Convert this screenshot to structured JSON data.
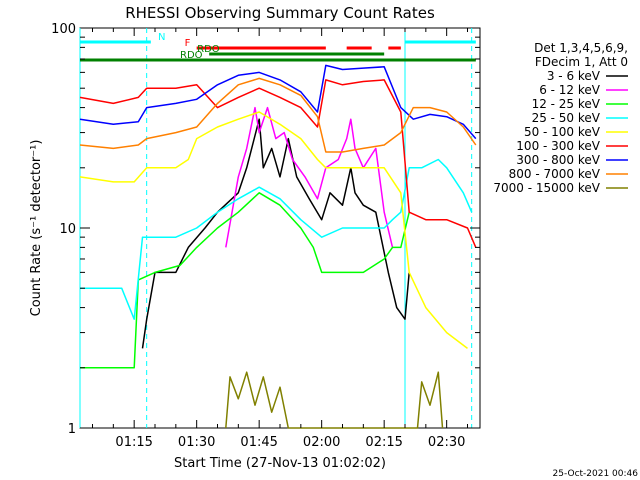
{
  "chart_data": {
    "type": "line",
    "title": "RHESSI Observing Summary Count Rates",
    "xlabel": "Start Time (27-Nov-13 01:02:02)",
    "ylabel": "Count Rate (s⁻¹ detector⁻¹)",
    "ylim": [
      1,
      100
    ],
    "yscale": "log",
    "xlim_minutes": [
      62,
      158
    ],
    "x_ticks": [
      {
        "label": "01:15",
        "minute": 75
      },
      {
        "label": "01:30",
        "minute": 90
      },
      {
        "label": "01:45",
        "minute": 105
      },
      {
        "label": "02:00",
        "minute": 120
      },
      {
        "label": "02:15",
        "minute": 135
      },
      {
        "label": "02:30",
        "minute": 150
      }
    ],
    "y_ticks": [
      {
        "label": "1",
        "value": 1
      },
      {
        "label": "10",
        "value": 10
      },
      {
        "label": "100",
        "value": 100
      }
    ],
    "legend": {
      "placement": "right",
      "title_lines": [
        "Det 1,3,4,5,6,9,",
        "FDecim 1, Att 0"
      ]
    },
    "timestamp": "25-Oct-2021 00:46",
    "flag_bars": [
      {
        "label": "N",
        "color": "#00ffff",
        "segments": [
          [
            62,
            79
          ],
          [
            140,
            157
          ]
        ]
      },
      {
        "label": "F",
        "color": "#ff0000",
        "segments": [
          [
            90,
            121
          ],
          [
            126,
            132
          ],
          [
            136,
            139
          ]
        ]
      },
      {
        "label": "RDO",
        "color": "#008000",
        "segments": [
          [
            93,
            135
          ]
        ]
      },
      {
        "label": "RDO",
        "color": "#008000",
        "segments": [
          [
            62,
            157
          ]
        ]
      }
    ],
    "vertical_markers": [
      {
        "minute": 62,
        "style": "solid",
        "color": "#00ffff"
      },
      {
        "minute": 78,
        "style": "dashed",
        "color": "#00ffff"
      },
      {
        "minute": 140,
        "style": "solid",
        "color": "#00ffff"
      },
      {
        "minute": 156,
        "style": "dashed",
        "color": "#00ffff"
      }
    ],
    "series": [
      {
        "name": "3 - 6 keV",
        "color": "#000000",
        "points": [
          [
            77,
            2.5
          ],
          [
            78,
            3.5
          ],
          [
            80,
            6
          ],
          [
            85,
            6
          ],
          [
            88,
            8
          ],
          [
            92,
            10
          ],
          [
            95,
            12
          ],
          [
            100,
            15
          ],
          [
            102,
            20
          ],
          [
            105,
            35
          ],
          [
            106,
            20
          ],
          [
            108,
            25
          ],
          [
            110,
            18
          ],
          [
            112,
            28
          ],
          [
            114,
            18
          ],
          [
            117,
            14
          ],
          [
            120,
            11
          ],
          [
            122,
            15
          ],
          [
            125,
            13
          ],
          [
            127,
            20
          ],
          [
            128,
            15
          ],
          [
            130,
            13
          ],
          [
            133,
            12
          ],
          [
            136,
            6
          ],
          [
            138,
            4
          ],
          [
            140,
            3.5
          ],
          [
            141,
            6
          ]
        ]
      },
      {
        "name": "6 - 12 keV",
        "color": "#ff00ff",
        "points": [
          [
            97,
            8
          ],
          [
            100,
            18
          ],
          [
            102,
            25
          ],
          [
            104,
            40
          ],
          [
            105,
            30
          ],
          [
            107,
            40
          ],
          [
            109,
            28
          ],
          [
            111,
            30
          ],
          [
            113,
            22
          ],
          [
            116,
            18
          ],
          [
            119,
            14
          ],
          [
            121,
            20
          ],
          [
            124,
            22
          ],
          [
            126,
            28
          ],
          [
            127,
            35
          ],
          [
            128,
            25
          ],
          [
            130,
            20
          ],
          [
            133,
            25
          ],
          [
            135,
            12
          ],
          [
            137,
            8
          ]
        ]
      },
      {
        "name": "12 - 25 keV",
        "color": "#00ff00",
        "points": [
          [
            62,
            2
          ],
          [
            75,
            2
          ],
          [
            76,
            5.5
          ],
          [
            80,
            6
          ],
          [
            86,
            6.5
          ],
          [
            90,
            8
          ],
          [
            95,
            10
          ],
          [
            100,
            12
          ],
          [
            105,
            15
          ],
          [
            110,
            13
          ],
          [
            115,
            10
          ],
          [
            118,
            8
          ],
          [
            120,
            6
          ],
          [
            125,
            6
          ],
          [
            130,
            6
          ],
          [
            135,
            7
          ],
          [
            137,
            8
          ],
          [
            139,
            8
          ],
          [
            141,
            12
          ]
        ]
      },
      {
        "name": "25 - 50 keV",
        "color": "#00ffff",
        "points": [
          [
            62,
            5
          ],
          [
            72,
            5
          ],
          [
            75,
            3.5
          ],
          [
            77,
            9
          ],
          [
            85,
            9
          ],
          [
            90,
            10
          ],
          [
            95,
            12
          ],
          [
            100,
            14
          ],
          [
            105,
            16
          ],
          [
            110,
            14
          ],
          [
            115,
            11
          ],
          [
            120,
            9
          ],
          [
            125,
            10
          ],
          [
            130,
            10
          ],
          [
            135,
            10
          ],
          [
            137,
            11
          ],
          [
            139,
            12
          ],
          [
            141,
            20
          ],
          [
            144,
            20
          ],
          [
            148,
            22
          ],
          [
            150,
            20
          ],
          [
            154,
            15
          ],
          [
            156,
            12
          ]
        ]
      },
      {
        "name": "50 - 100 keV",
        "color": "#ffff00",
        "points": [
          [
            62,
            18
          ],
          [
            70,
            17
          ],
          [
            75,
            17
          ],
          [
            78,
            20
          ],
          [
            85,
            20
          ],
          [
            88,
            22
          ],
          [
            90,
            28
          ],
          [
            95,
            32
          ],
          [
            100,
            35
          ],
          [
            105,
            38
          ],
          [
            110,
            33
          ],
          [
            115,
            28
          ],
          [
            119,
            22
          ],
          [
            121,
            20
          ],
          [
            130,
            20
          ],
          [
            135,
            20
          ],
          [
            139,
            15
          ],
          [
            141,
            6
          ],
          [
            145,
            4
          ],
          [
            150,
            3
          ],
          [
            155,
            2.5
          ]
        ]
      },
      {
        "name": "100 - 300 keV",
        "color": "#ff0000",
        "points": [
          [
            62,
            45
          ],
          [
            70,
            42
          ],
          [
            76,
            45
          ],
          [
            78,
            50
          ],
          [
            85,
            50
          ],
          [
            90,
            52
          ],
          [
            95,
            40
          ],
          [
            100,
            45
          ],
          [
            105,
            50
          ],
          [
            110,
            45
          ],
          [
            115,
            40
          ],
          [
            119,
            32
          ],
          [
            121,
            55
          ],
          [
            125,
            52
          ],
          [
            130,
            54
          ],
          [
            135,
            55
          ],
          [
            139,
            38
          ],
          [
            141,
            12
          ],
          [
            145,
            11
          ],
          [
            150,
            11
          ],
          [
            155,
            10
          ],
          [
            157,
            8
          ]
        ]
      },
      {
        "name": "300 - 800 keV",
        "color": "#0000ff",
        "points": [
          [
            62,
            35
          ],
          [
            70,
            33
          ],
          [
            76,
            34
          ],
          [
            78,
            40
          ],
          [
            85,
            42
          ],
          [
            90,
            44
          ],
          [
            95,
            52
          ],
          [
            100,
            58
          ],
          [
            105,
            60
          ],
          [
            110,
            55
          ],
          [
            115,
            48
          ],
          [
            119,
            38
          ],
          [
            121,
            65
          ],
          [
            125,
            62
          ],
          [
            130,
            63
          ],
          [
            135,
            64
          ],
          [
            139,
            40
          ],
          [
            142,
            35
          ],
          [
            146,
            37
          ],
          [
            150,
            36
          ],
          [
            154,
            33
          ],
          [
            157,
            28
          ]
        ]
      },
      {
        "name": "800 - 7000 keV",
        "color": "#ff8000",
        "points": [
          [
            62,
            26
          ],
          [
            70,
            25
          ],
          [
            76,
            26
          ],
          [
            78,
            28
          ],
          [
            85,
            30
          ],
          [
            90,
            32
          ],
          [
            95,
            42
          ],
          [
            100,
            52
          ],
          [
            105,
            56
          ],
          [
            110,
            52
          ],
          [
            115,
            46
          ],
          [
            119,
            36
          ],
          [
            121,
            24
          ],
          [
            125,
            24
          ],
          [
            130,
            25
          ],
          [
            135,
            26
          ],
          [
            139,
            30
          ],
          [
            142,
            40
          ],
          [
            146,
            40
          ],
          [
            150,
            38
          ],
          [
            154,
            32
          ],
          [
            157,
            26
          ]
        ]
      },
      {
        "name": "7000 - 15000 keV",
        "color": "#808000",
        "points": [
          [
            97,
            1
          ],
          [
            98,
            1.8
          ],
          [
            100,
            1.4
          ],
          [
            102,
            1.9
          ],
          [
            104,
            1.3
          ],
          [
            106,
            1.8
          ],
          [
            108,
            1.2
          ],
          [
            110,
            1.6
          ],
          [
            112,
            1
          ],
          [
            143,
            1
          ],
          [
            144,
            1.7
          ],
          [
            146,
            1.3
          ],
          [
            148,
            1.9
          ],
          [
            149,
            1
          ]
        ]
      }
    ]
  }
}
